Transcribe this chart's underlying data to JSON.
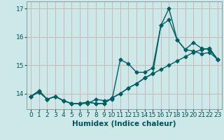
{
  "xlabel": "Humidex (Indice chaleur)",
  "xlim": [
    -0.5,
    23.5
  ],
  "ylim": [
    13.45,
    17.25
  ],
  "background_color": "#cce8e8",
  "grid_color": "#c8b8b8",
  "line_color": "#006060",
  "xticks": [
    0,
    1,
    2,
    3,
    4,
    5,
    6,
    7,
    8,
    9,
    10,
    11,
    12,
    13,
    14,
    15,
    16,
    17,
    18,
    19,
    20,
    21,
    22,
    23
  ],
  "yticks": [
    14,
    15,
    16,
    17
  ],
  "series1_y": [
    13.9,
    14.05,
    13.8,
    13.9,
    13.75,
    13.65,
    13.65,
    13.65,
    13.8,
    13.75,
    13.8,
    15.2,
    15.05,
    14.75,
    14.75,
    14.9,
    16.4,
    17.0,
    15.9,
    15.55,
    15.5,
    15.4,
    15.45,
    15.2
  ],
  "series2_y": [
    13.9,
    14.1,
    13.8,
    13.9,
    13.75,
    13.65,
    13.65,
    13.7,
    13.65,
    13.65,
    13.85,
    14.0,
    14.2,
    14.35,
    14.55,
    14.7,
    16.4,
    16.6,
    15.9,
    15.55,
    15.8,
    15.6,
    15.55,
    15.2
  ],
  "series3_y": [
    13.9,
    14.1,
    13.8,
    13.9,
    13.75,
    13.65,
    13.65,
    13.7,
    13.65,
    13.65,
    13.85,
    14.0,
    14.2,
    14.35,
    14.55,
    14.7,
    14.85,
    15.0,
    15.15,
    15.3,
    15.45,
    15.55,
    15.6,
    15.2
  ],
  "marker": "D",
  "markersize": 2.5,
  "linewidth": 1.0,
  "font_color": "#005555",
  "tick_fontsize": 6.5,
  "label_fontsize": 7.5
}
